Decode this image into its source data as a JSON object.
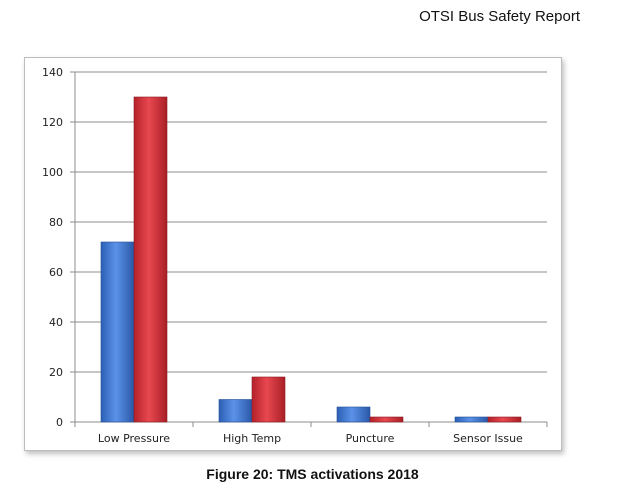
{
  "header": {
    "title": "OTSI Bus Safety Report"
  },
  "caption": "Figure 20: TMS activations 2018",
  "chart_data": {
    "type": "bar",
    "categories": [
      "Low Pressure",
      "High Temp",
      "Puncture",
      "Sensor Issue"
    ],
    "series": [
      {
        "values": [
          72,
          9,
          6,
          2
        ],
        "color": "#4a7fd6"
      },
      {
        "values": [
          130,
          18,
          2,
          2
        ],
        "color": "#d9363e"
      }
    ],
    "ylim": [
      0,
      140
    ],
    "yticks": [
      0,
      20,
      40,
      60,
      80,
      100,
      120,
      140
    ],
    "grid": true,
    "legend": "none"
  }
}
